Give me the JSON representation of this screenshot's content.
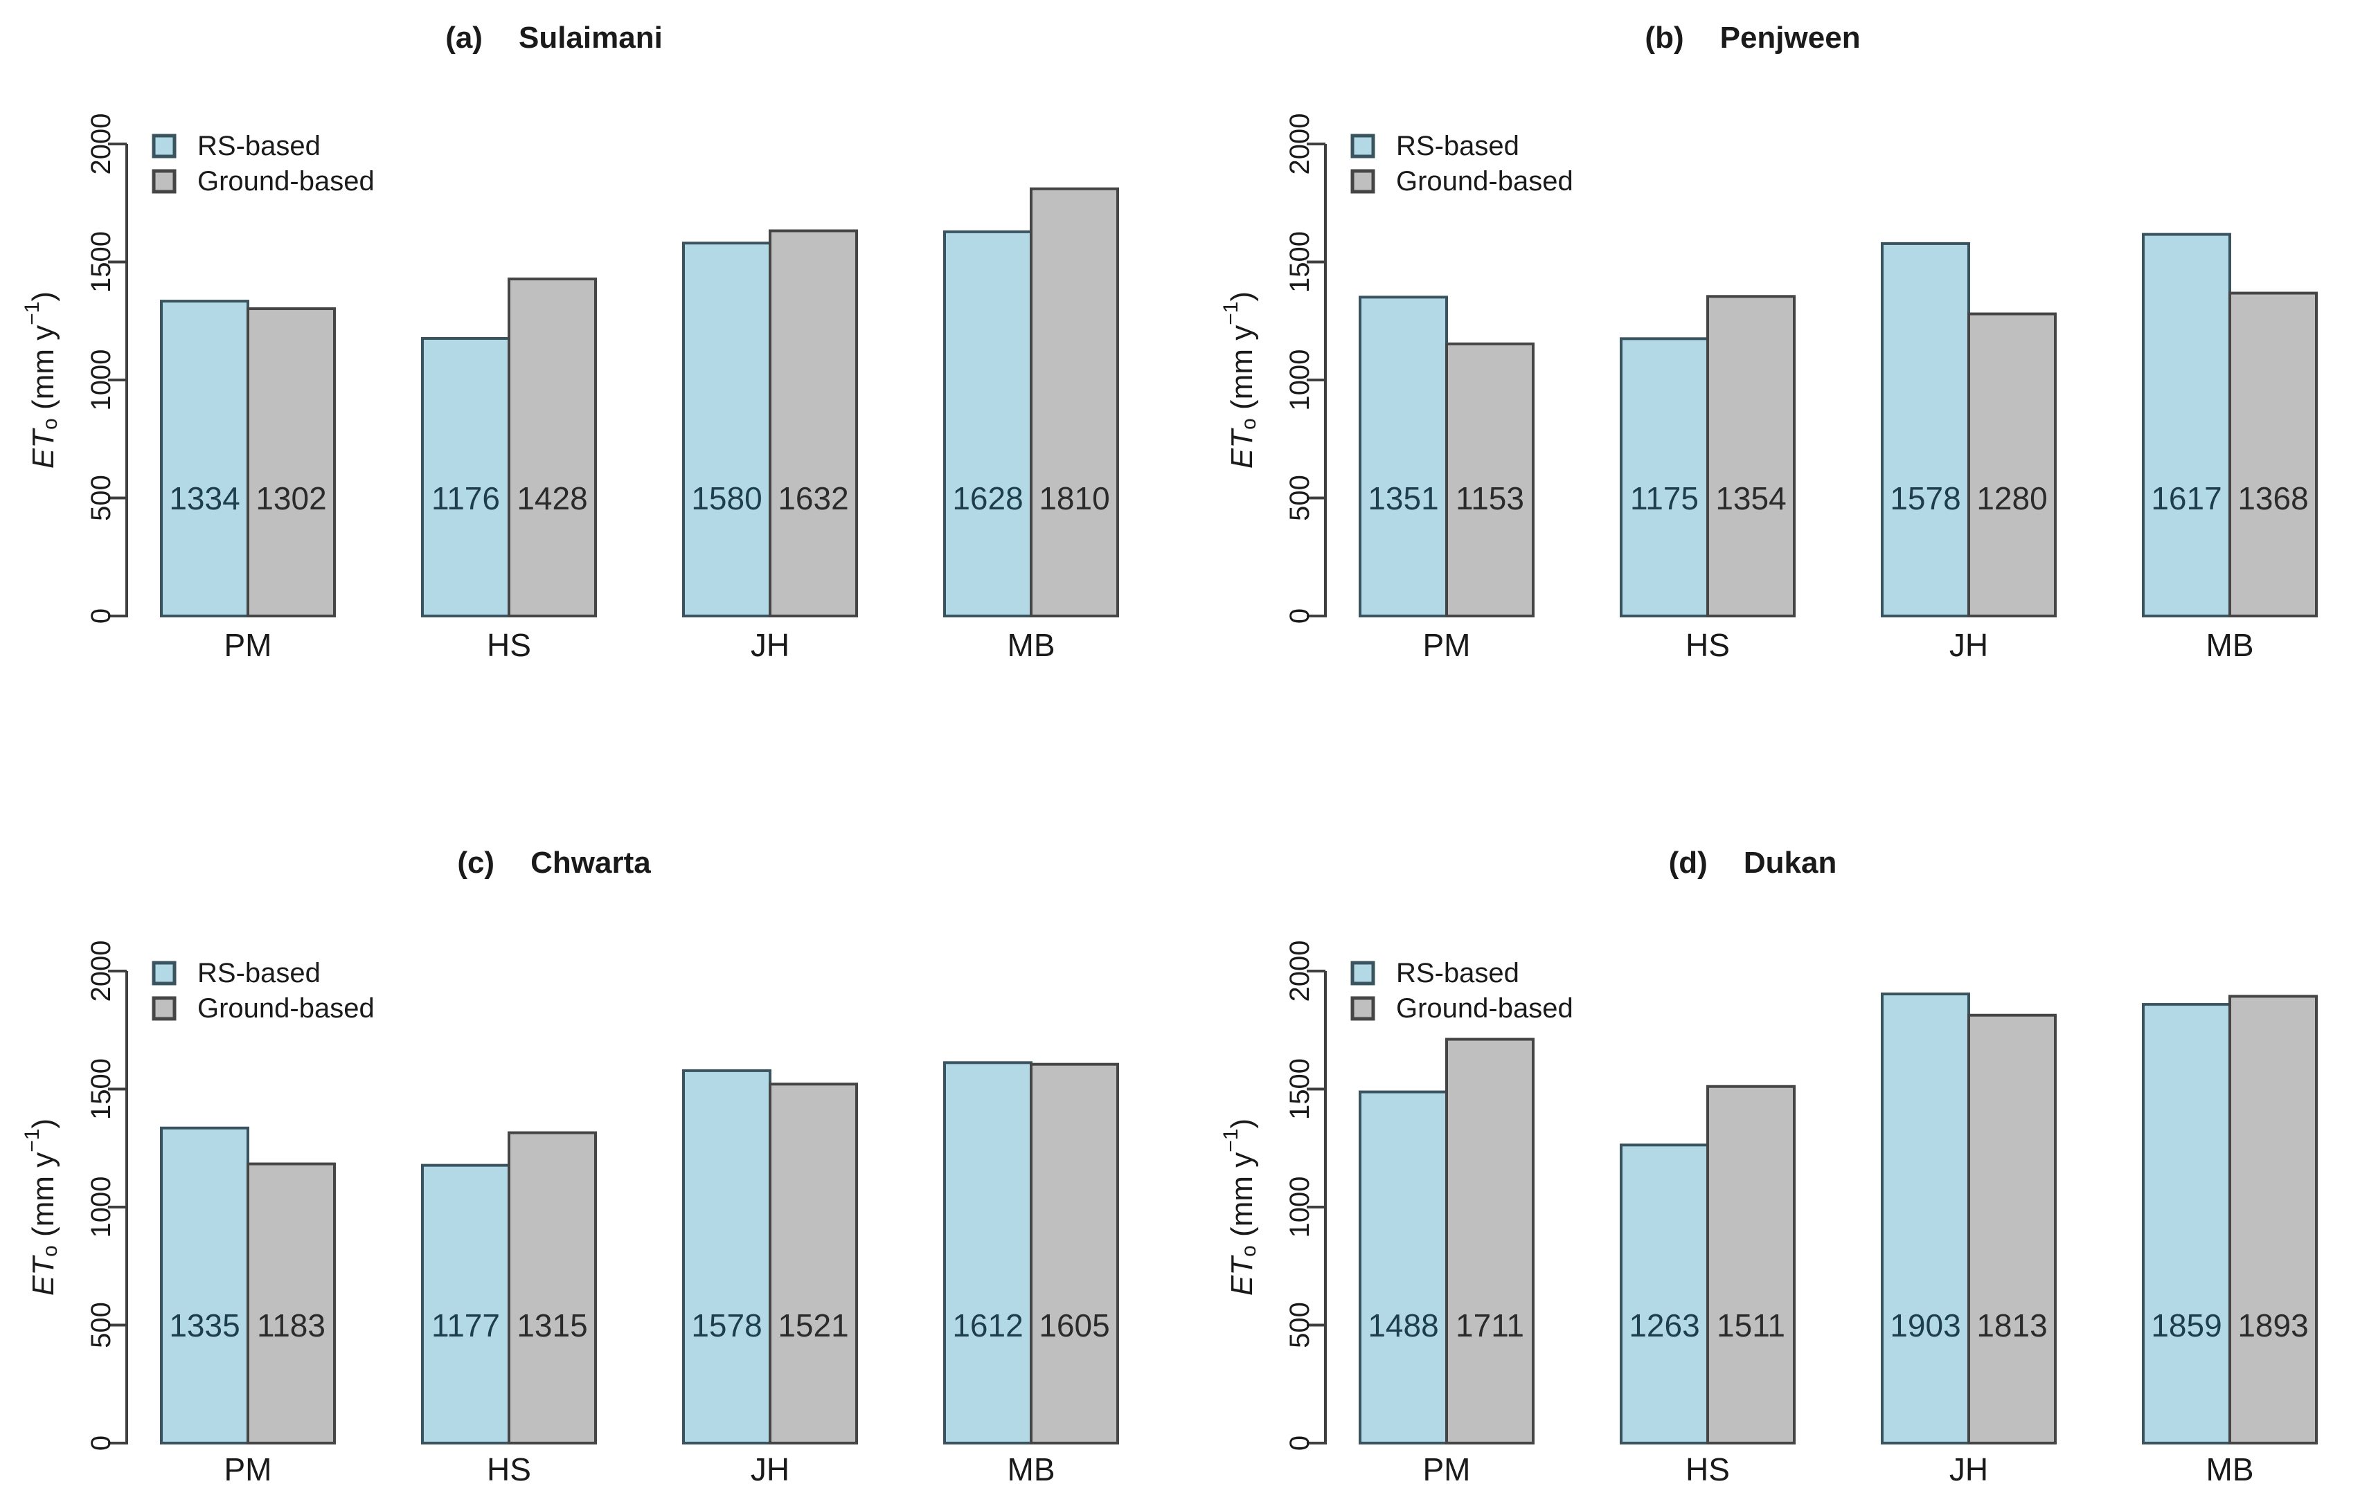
{
  "figure": {
    "legend": {
      "items": [
        {
          "label": "RS-based",
          "series": "rs"
        },
        {
          "label": "Ground-based",
          "series": "ground"
        }
      ]
    },
    "y_axis": {
      "ticks": [
        "0",
        "500",
        "1000",
        "1500",
        "2000"
      ],
      "tick_values": [
        0,
        500,
        1000,
        1500,
        2000
      ],
      "label": {
        "italic": "ET",
        "sub": "o",
        "mid": " (mm y",
        "sup": "−1",
        "end": ")"
      }
    },
    "categories": [
      "PM",
      "HS",
      "JH",
      "MB"
    ]
  },
  "style": {
    "background": "#ffffff",
    "rs_fill": "#b3d9e6",
    "rs_border": "#3a545f",
    "rs_label_color": "#1e3d4d",
    "ground_fill": "#bfbfbf",
    "ground_border": "#454545",
    "ground_label_color": "#2b2b2b",
    "axis_color": "#3f3f3f",
    "text_color": "#1a1a1a"
  },
  "chart_data": [
    {
      "type": "bar",
      "panel_label": "(a)",
      "title": "Sulaimani",
      "categories": [
        "PM",
        "HS",
        "JH",
        "MB"
      ],
      "series": [
        {
          "name": "RS-based",
          "values": [
            1334,
            1176,
            1580,
            1628
          ]
        },
        {
          "name": "Ground-based",
          "values": [
            1302,
            1428,
            1632,
            1810
          ]
        }
      ],
      "ylabel": "ETo (mm y−1)",
      "ylim": [
        0,
        2000
      ],
      "grid": false,
      "legend_position": "top-left",
      "bar_value_labels": true
    },
    {
      "type": "bar",
      "panel_label": "(b)",
      "title": "Penjween",
      "categories": [
        "PM",
        "HS",
        "JH",
        "MB"
      ],
      "series": [
        {
          "name": "RS-based",
          "values": [
            1351,
            1175,
            1578,
            1617
          ]
        },
        {
          "name": "Ground-based",
          "values": [
            1153,
            1354,
            1280,
            1368
          ]
        }
      ],
      "ylabel": "ETo (mm y−1)",
      "ylim": [
        0,
        2000
      ],
      "grid": false,
      "legend_position": "top-left",
      "bar_value_labels": true
    },
    {
      "type": "bar",
      "panel_label": "(c)",
      "title": "Chwarta",
      "categories": [
        "PM",
        "HS",
        "JH",
        "MB"
      ],
      "series": [
        {
          "name": "RS-based",
          "values": [
            1335,
            1177,
            1578,
            1612
          ]
        },
        {
          "name": "Ground-based",
          "values": [
            1183,
            1315,
            1521,
            1605
          ]
        }
      ],
      "ylabel": "ETo (mm y−1)",
      "ylim": [
        0,
        2000
      ],
      "grid": false,
      "legend_position": "top-left",
      "bar_value_labels": true
    },
    {
      "type": "bar",
      "panel_label": "(d)",
      "title": "Dukan",
      "categories": [
        "PM",
        "HS",
        "JH",
        "MB"
      ],
      "series": [
        {
          "name": "RS-based",
          "values": [
            1488,
            1263,
            1903,
            1859
          ]
        },
        {
          "name": "Ground-based",
          "values": [
            1711,
            1511,
            1813,
            1893
          ]
        }
      ],
      "ylabel": "ETo (mm y−1)",
      "ylim": [
        0,
        2000
      ],
      "grid": false,
      "legend_position": "top-left",
      "bar_value_labels": true
    }
  ]
}
